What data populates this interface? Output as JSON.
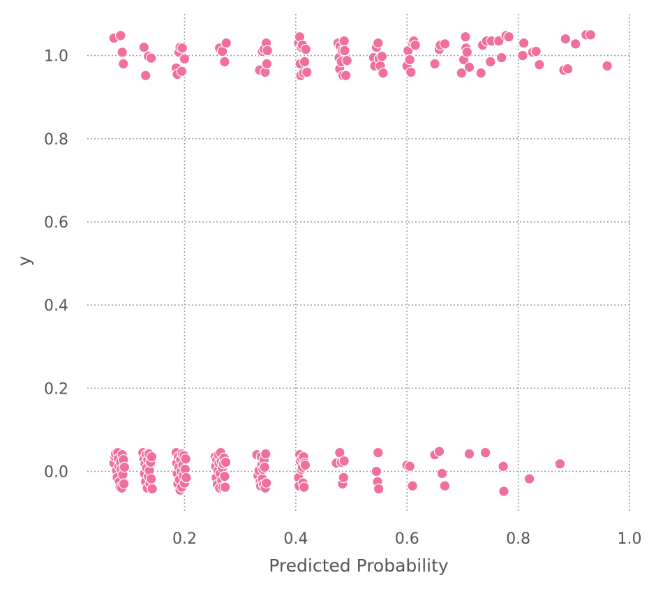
{
  "chart_data": {
    "type": "scatter",
    "title": "",
    "xlabel": "Predicted Probability",
    "ylabel": "y",
    "xlim": [
      0.025,
      1.0
    ],
    "ylim": [
      -0.1,
      1.1
    ],
    "xticks": [
      0.2,
      0.4,
      0.6,
      0.8,
      1.0
    ],
    "xtick_labels": [
      "0.2",
      "0.4",
      "0.6",
      "0.8",
      "1.0"
    ],
    "yticks": [
      0.0,
      0.2,
      0.4,
      0.6,
      0.8,
      1.0
    ],
    "ytick_labels": [
      "0.0",
      "0.2",
      "0.4",
      "0.6",
      "0.8",
      "1.0"
    ],
    "grid": true,
    "grid_style": "dotted",
    "point_color": "#f0709a",
    "grid_color": "#a0a0a0",
    "text_color": "#555555",
    "series": [
      {
        "points": [
          [
            0.073,
            1.042
          ],
          [
            0.085,
            1.048
          ],
          [
            0.088,
            1.008
          ],
          [
            0.09,
            0.98
          ],
          [
            0.127,
            1.02
          ],
          [
            0.13,
            0.952
          ],
          [
            0.135,
            0.998
          ],
          [
            0.14,
            0.994
          ],
          [
            0.185,
            0.97
          ],
          [
            0.187,
            0.955
          ],
          [
            0.19,
            1.008
          ],
          [
            0.192,
            1.02
          ],
          [
            0.195,
            0.962
          ],
          [
            0.196,
            1.018
          ],
          [
            0.2,
            0.992
          ],
          [
            0.263,
            1.018
          ],
          [
            0.268,
            1.01
          ],
          [
            0.272,
            0.985
          ],
          [
            0.275,
            1.03
          ],
          [
            0.335,
            0.965
          ],
          [
            0.34,
            1.01
          ],
          [
            0.343,
            1.015
          ],
          [
            0.345,
            0.96
          ],
          [
            0.347,
            1.03
          ],
          [
            0.348,
            0.98
          ],
          [
            0.349,
            1.012
          ],
          [
            0.405,
            1.03
          ],
          [
            0.407,
            1.045
          ],
          [
            0.408,
            0.98
          ],
          [
            0.409,
            0.952
          ],
          [
            0.41,
            1.02
          ],
          [
            0.412,
            1.025
          ],
          [
            0.414,
            0.958
          ],
          [
            0.416,
            0.985
          ],
          [
            0.418,
            1.015
          ],
          [
            0.42,
            0.96
          ],
          [
            0.476,
            1.03
          ],
          [
            0.478,
            0.995
          ],
          [
            0.479,
            0.968
          ],
          [
            0.48,
            1.022
          ],
          [
            0.482,
            0.985
          ],
          [
            0.484,
            1.012
          ],
          [
            0.485,
            0.952
          ],
          [
            0.487,
            1.035
          ],
          [
            0.488,
            1.012
          ],
          [
            0.49,
            0.952
          ],
          [
            0.492,
            0.988
          ],
          [
            0.54,
            0.995
          ],
          [
            0.542,
            0.975
          ],
          [
            0.545,
            1.02
          ],
          [
            0.548,
            1.03
          ],
          [
            0.55,
            0.992
          ],
          [
            0.552,
            0.975
          ],
          [
            0.555,
            0.998
          ],
          [
            0.557,
            0.958
          ],
          [
            0.6,
            0.975
          ],
          [
            0.602,
            1.012
          ],
          [
            0.605,
            0.99
          ],
          [
            0.607,
            0.96
          ],
          [
            0.61,
            1.03
          ],
          [
            0.612,
            1.035
          ],
          [
            0.615,
            1.025
          ],
          [
            0.65,
            0.98
          ],
          [
            0.658,
            1.015
          ],
          [
            0.66,
            1.025
          ],
          [
            0.668,
            1.028
          ],
          [
            0.698,
            0.958
          ],
          [
            0.702,
            0.99
          ],
          [
            0.705,
            1.045
          ],
          [
            0.706,
            1.018
          ],
          [
            0.708,
            1.008
          ],
          [
            0.712,
            0.972
          ],
          [
            0.733,
            0.958
          ],
          [
            0.736,
            1.025
          ],
          [
            0.743,
            1.035
          ],
          [
            0.75,
            0.985
          ],
          [
            0.752,
            1.035
          ],
          [
            0.765,
            1.035
          ],
          [
            0.77,
            0.995
          ],
          [
            0.778,
            1.048
          ],
          [
            0.783,
            1.045
          ],
          [
            0.808,
            1.0
          ],
          [
            0.81,
            1.03
          ],
          [
            0.826,
            1.008
          ],
          [
            0.832,
            1.01
          ],
          [
            0.838,
            0.978
          ],
          [
            0.882,
            0.965
          ],
          [
            0.885,
            1.04
          ],
          [
            0.889,
            0.968
          ],
          [
            0.903,
            1.028
          ],
          [
            0.922,
            1.05
          ],
          [
            0.93,
            1.05
          ],
          [
            0.96,
            0.975
          ],
          [
            0.073,
            0.02
          ],
          [
            0.075,
            0.035
          ],
          [
            0.076,
            0.042
          ],
          [
            0.078,
            0.002
          ],
          [
            0.079,
            -0.015
          ],
          [
            0.08,
            0.045
          ],
          [
            0.081,
            0.03
          ],
          [
            0.082,
            0.012
          ],
          [
            0.083,
            -0.025
          ],
          [
            0.084,
            -0.038
          ],
          [
            0.085,
            0.022
          ],
          [
            0.086,
            0.005
          ],
          [
            0.087,
            -0.04
          ],
          [
            0.088,
            0.04
          ],
          [
            0.089,
            -0.008
          ],
          [
            0.09,
            0.028
          ],
          [
            0.091,
            -0.03
          ],
          [
            0.092,
            0.01
          ],
          [
            0.125,
            0.045
          ],
          [
            0.127,
            0.03
          ],
          [
            0.128,
            -0.005
          ],
          [
            0.129,
            0.018
          ],
          [
            0.13,
            -0.025
          ],
          [
            0.131,
            0.04
          ],
          [
            0.132,
            0.008
          ],
          [
            0.133,
            -0.04
          ],
          [
            0.134,
            0.028
          ],
          [
            0.135,
            -0.012
          ],
          [
            0.136,
            0.042
          ],
          [
            0.137,
            0.002
          ],
          [
            0.138,
            -0.03
          ],
          [
            0.139,
            0.022
          ],
          [
            0.14,
            -0.018
          ],
          [
            0.141,
            0.035
          ],
          [
            0.142,
            -0.042
          ],
          [
            0.185,
            0.045
          ],
          [
            0.186,
            0.02
          ],
          [
            0.187,
            -0.005
          ],
          [
            0.188,
            -0.03
          ],
          [
            0.189,
            0.035
          ],
          [
            0.19,
            0.01
          ],
          [
            0.191,
            -0.02
          ],
          [
            0.192,
            -0.045
          ],
          [
            0.193,
            0.028
          ],
          [
            0.194,
            0.0
          ],
          [
            0.195,
            -0.038
          ],
          [
            0.196,
            0.042
          ],
          [
            0.197,
            0.015
          ],
          [
            0.198,
            -0.01
          ],
          [
            0.199,
            0.038
          ],
          [
            0.2,
            -0.028
          ],
          [
            0.201,
            0.005
          ],
          [
            0.202,
            0.03
          ],
          [
            0.203,
            -0.015
          ],
          [
            0.255,
            0.035
          ],
          [
            0.256,
            0.012
          ],
          [
            0.257,
            -0.015
          ],
          [
            0.258,
            0.028
          ],
          [
            0.259,
            -0.032
          ],
          [
            0.26,
            0.002
          ],
          [
            0.261,
            0.04
          ],
          [
            0.262,
            0.02
          ],
          [
            0.263,
            -0.04
          ],
          [
            0.264,
            -0.005
          ],
          [
            0.265,
            0.045
          ],
          [
            0.266,
            0.025
          ],
          [
            0.267,
            -0.022
          ],
          [
            0.268,
            0.008
          ],
          [
            0.269,
            -0.038
          ],
          [
            0.27,
            0.018
          ],
          [
            0.271,
            0.032
          ],
          [
            0.272,
            -0.012
          ],
          [
            0.273,
            -0.038
          ],
          [
            0.274,
            0.022
          ],
          [
            0.33,
            0.04
          ],
          [
            0.332,
            -0.01
          ],
          [
            0.334,
            0.002
          ],
          [
            0.336,
            -0.025
          ],
          [
            0.337,
            -0.035
          ],
          [
            0.338,
            0.035
          ],
          [
            0.339,
            0.015
          ],
          [
            0.34,
            -0.018
          ],
          [
            0.341,
            0.005
          ],
          [
            0.342,
            -0.032
          ],
          [
            0.343,
            0.028
          ],
          [
            0.344,
            0.01
          ],
          [
            0.345,
            -0.04
          ],
          [
            0.346,
            0.042
          ],
          [
            0.347,
            -0.028
          ],
          [
            0.405,
            -0.015
          ],
          [
            0.406,
            -0.035
          ],
          [
            0.407,
            0.04
          ],
          [
            0.408,
            0.025
          ],
          [
            0.41,
            0.005
          ],
          [
            0.411,
            0.03
          ],
          [
            0.412,
            0.01
          ],
          [
            0.413,
            -0.028
          ],
          [
            0.414,
            0.035
          ],
          [
            0.415,
            -0.038
          ],
          [
            0.416,
            0.02
          ],
          [
            0.417,
            0.015
          ],
          [
            0.473,
            0.02
          ],
          [
            0.479,
            0.045
          ],
          [
            0.482,
            0.022
          ],
          [
            0.484,
            -0.03
          ],
          [
            0.486,
            -0.015
          ],
          [
            0.487,
            0.025
          ],
          [
            0.545,
            0.0
          ],
          [
            0.547,
            -0.025
          ],
          [
            0.548,
            0.045
          ],
          [
            0.549,
            -0.042
          ],
          [
            0.6,
            0.015
          ],
          [
            0.605,
            0.012
          ],
          [
            0.61,
            -0.035
          ],
          [
            0.65,
            0.04
          ],
          [
            0.658,
            0.048
          ],
          [
            0.663,
            -0.005
          ],
          [
            0.668,
            -0.035
          ],
          [
            0.712,
            0.042
          ],
          [
            0.741,
            0.045
          ],
          [
            0.773,
            0.012
          ],
          [
            0.774,
            -0.048
          ],
          [
            0.82,
            -0.018
          ],
          [
            0.875,
            0.018
          ]
        ]
      }
    ]
  }
}
